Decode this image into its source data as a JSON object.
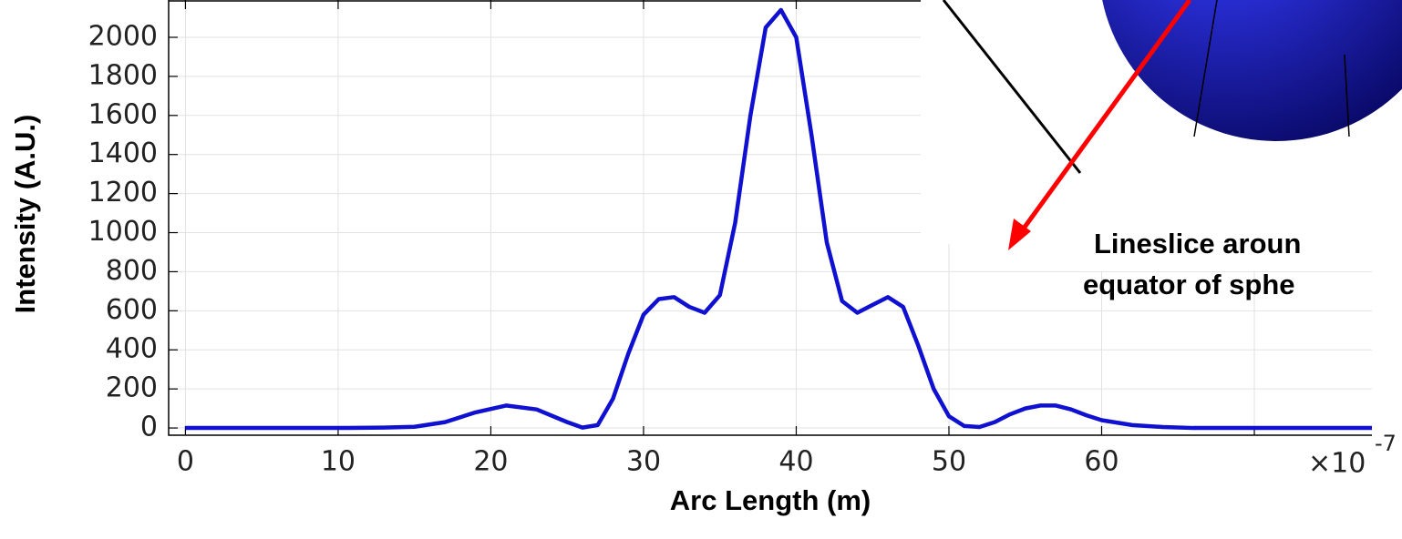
{
  "chart_data": {
    "type": "line",
    "x_label": "Arc Length (m)",
    "y_label": "Intensity (A.U.)",
    "x_multiplier": "×10",
    "x_exponent": "-7",
    "annotation_lines": [
      "Lineslice aroun",
      "equator of sphe"
    ],
    "xlim": [
      -1.1,
      77.7
    ],
    "ylim": [
      -37,
      2191
    ],
    "xticks": [
      0,
      10,
      20,
      30,
      40,
      50,
      60,
      70
    ],
    "yticks": [
      0,
      200,
      400,
      600,
      800,
      1000,
      1200,
      1400,
      1600,
      1800,
      2000
    ],
    "grid": true,
    "series": [
      {
        "color": "#1010d0",
        "x": [
          0,
          5,
          10,
          13,
          15,
          17,
          19,
          21,
          23,
          25,
          26,
          27,
          28,
          29,
          30,
          31,
          32,
          33,
          34,
          35,
          36,
          37,
          38,
          39,
          40,
          41,
          42,
          43,
          44,
          45,
          46,
          47,
          48,
          49,
          50,
          51,
          52,
          53,
          54,
          55,
          56,
          57,
          58,
          59,
          60,
          62,
          64,
          66,
          70,
          75,
          77.7
        ],
        "values": [
          0,
          0,
          0,
          2,
          6,
          30,
          80,
          115,
          95,
          30,
          2,
          15,
          150,
          380,
          580,
          660,
          670,
          620,
          590,
          680,
          1050,
          1600,
          2050,
          2140,
          2000,
          1500,
          950,
          650,
          590,
          630,
          670,
          620,
          420,
          200,
          60,
          10,
          5,
          30,
          70,
          100,
          115,
          115,
          95,
          65,
          40,
          15,
          5,
          0,
          0,
          0,
          0
        ]
      }
    ]
  }
}
